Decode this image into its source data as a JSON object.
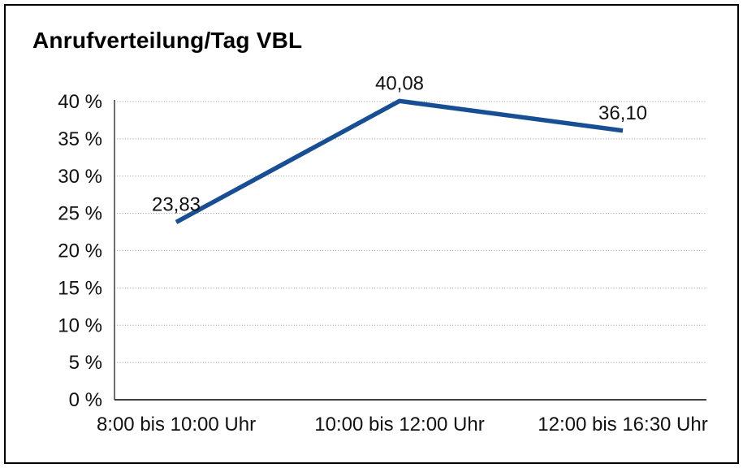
{
  "title": "Anrufverteilung/Tag VBL",
  "colors": {
    "line": "#174e94",
    "grid": "#8f8f8f",
    "axis": "#3f3f3f",
    "text": "#111111",
    "border": "#000000",
    "background": "#ffffff"
  },
  "chart_data": {
    "type": "line",
    "title": "Anrufverteilung/Tag VBL",
    "categories": [
      "8:00 bis 10:00 Uhr",
      "10:00 bis 12:00 Uhr",
      "12:00 bis 16:30 Uhr"
    ],
    "values": [
      23.83,
      40.08,
      36.1
    ],
    "point_labels": [
      "23,83",
      "40,08",
      "36,10"
    ],
    "xlabel": "",
    "ylabel": "",
    "ylim": [
      0,
      40
    ],
    "ytick_step": 5,
    "ytick_labels": [
      "0 %",
      "5 %",
      "10 %",
      "15 %",
      "20 %",
      "25 %",
      "30 %",
      "35 %",
      "40 %"
    ],
    "grid": "horizontal-dotted",
    "legend": "none"
  }
}
